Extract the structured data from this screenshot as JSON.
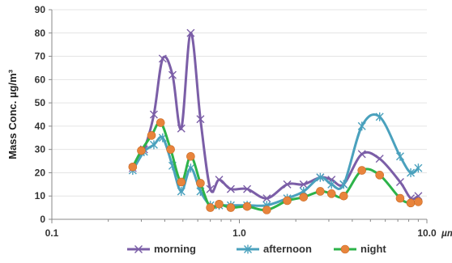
{
  "chart_data": {
    "type": "line",
    "x_scale": "log",
    "xlim": [
      0.1,
      10.0
    ],
    "ylim": [
      0,
      90
    ],
    "y_ticks": [
      0,
      10,
      20,
      30,
      40,
      50,
      60,
      70,
      80,
      90
    ],
    "x_tick_labels": [
      "0.1",
      "1.0",
      "10.0"
    ],
    "x_unit_label": "µm",
    "ylabel": "Mass Conc. µg/m³",
    "legend_position": "bottom",
    "series": [
      {
        "name": "morning",
        "color": "#7b5ea7",
        "marker": "x",
        "x": [
          0.27,
          0.31,
          0.35,
          0.39,
          0.44,
          0.49,
          0.55,
          0.62,
          0.7,
          0.78,
          0.9,
          1.1,
          1.4,
          1.8,
          2.2,
          2.7,
          3.1,
          3.6,
          4.5,
          5.6,
          7.2,
          8.2,
          9.0
        ],
        "y": [
          22,
          30,
          45,
          69,
          62,
          39,
          80,
          43,
          13,
          17,
          13,
          13,
          9,
          15,
          15,
          18,
          17,
          15,
          28,
          26,
          16,
          9,
          10
        ]
      },
      {
        "name": "afternoon",
        "color": "#4aa1bd",
        "marker": "asterisk",
        "x": [
          0.27,
          0.31,
          0.35,
          0.39,
          0.44,
          0.49,
          0.55,
          0.62,
          0.7,
          0.78,
          0.9,
          1.1,
          1.4,
          1.8,
          2.2,
          2.7,
          3.1,
          3.6,
          4.5,
          5.6,
          7.2,
          8.2,
          9.0
        ],
        "y": [
          21,
          29,
          32,
          35,
          23,
          12,
          22,
          12,
          6,
          6,
          6,
          6,
          6,
          9,
          12,
          18,
          15,
          15,
          40,
          44,
          27,
          20,
          22
        ]
      },
      {
        "name": "night",
        "color": "#e8843c",
        "line_color": "#2db34a",
        "marker": "circle",
        "x": [
          0.27,
          0.3,
          0.34,
          0.38,
          0.43,
          0.49,
          0.55,
          0.62,
          0.7,
          0.78,
          0.9,
          1.1,
          1.4,
          1.8,
          2.2,
          2.7,
          3.1,
          3.6,
          4.5,
          5.6,
          7.2,
          8.2,
          9.0
        ],
        "y": [
          22.5,
          29.5,
          36,
          41.5,
          30,
          16,
          27,
          15.5,
          5,
          6.5,
          5,
          5.5,
          4,
          8,
          9.5,
          12,
          11,
          10,
          21,
          19,
          9,
          7,
          7.5
        ]
      }
    ]
  }
}
